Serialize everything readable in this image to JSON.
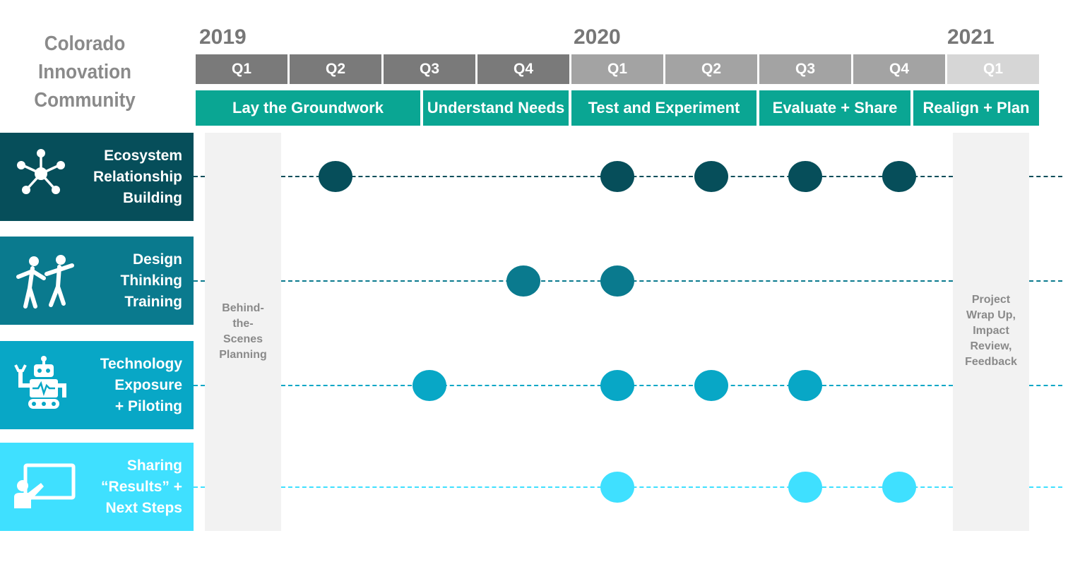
{
  "title": [
    "Colorado",
    "Innovation",
    "Community"
  ],
  "years": [
    "2019",
    "2020",
    "2021"
  ],
  "quarters": [
    {
      "label": "Q1",
      "color": "#7a7a7a"
    },
    {
      "label": "Q2",
      "color": "#7a7a7a"
    },
    {
      "label": "Q3",
      "color": "#7a7a7a"
    },
    {
      "label": "Q4",
      "color": "#7a7a7a"
    },
    {
      "label": "Q1",
      "color": "#a3a3a3"
    },
    {
      "label": "Q2",
      "color": "#a3a3a3"
    },
    {
      "label": "Q3",
      "color": "#a3a3a3"
    },
    {
      "label": "Q4",
      "color": "#a3a3a3"
    },
    {
      "label": "Q1",
      "color": "#d6d6d6"
    }
  ],
  "phases": [
    "Lay the Groundwork",
    "Understand Needs",
    "Test and Experiment",
    "Evaluate + Share",
    "Realign + Plan"
  ],
  "side_columns": {
    "left": [
      "Behind-",
      "the-",
      "Scenes",
      "Planning"
    ],
    "right": [
      "Project",
      "Wrap Up,",
      "Impact",
      "Review,",
      "Feedback"
    ]
  },
  "rows": [
    {
      "label": [
        "Ecosystem",
        "Relationship",
        "Building"
      ],
      "icon": "network-icon",
      "color": "#064e5a",
      "quarters": [
        2,
        5,
        6,
        7,
        8
      ]
    },
    {
      "label": [
        "Design",
        "Thinking",
        "Training"
      ],
      "icon": "dancing-people-icon",
      "color": "#0a7a8e",
      "quarters": [
        4,
        5
      ]
    },
    {
      "label": [
        "Technology",
        "Exposure",
        "+ Piloting"
      ],
      "icon": "robot-icon",
      "color": "#08a7c6",
      "quarters": [
        3,
        5,
        6,
        7
      ]
    },
    {
      "label": [
        "Sharing",
        "“Results” +",
        "Next Steps"
      ],
      "icon": "presentation-icon",
      "color": "#3fe0ff",
      "quarters": [
        5,
        7,
        8
      ]
    }
  ]
}
